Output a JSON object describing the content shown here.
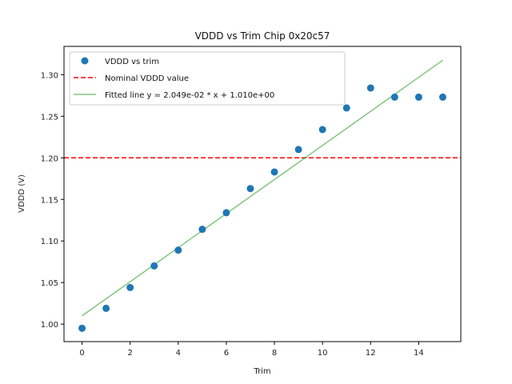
{
  "chart_data": {
    "type": "scatter",
    "title": "VDDD vs Trim Chip 0x20c57",
    "xlabel": "Trim",
    "ylabel": "VDDD (V)",
    "xlim": [
      -0.75,
      15.75
    ],
    "ylim": [
      0.979,
      1.334
    ],
    "xticks": [
      0,
      2,
      4,
      6,
      8,
      10,
      12,
      14
    ],
    "xtick_labels": [
      "0",
      "2",
      "4",
      "6",
      "8",
      "10",
      "12",
      "14"
    ],
    "yticks": [
      1.0,
      1.05,
      1.1,
      1.15,
      1.2,
      1.25,
      1.3
    ],
    "ytick_labels": [
      "1.00",
      "1.05",
      "1.10",
      "1.15",
      "1.20",
      "1.25",
      "1.30"
    ],
    "grid": false,
    "legend_position": "top-left",
    "series": [
      {
        "name": "VDDD vs trim",
        "kind": "scatter",
        "color": "#1f77b4",
        "x": [
          0,
          1,
          2,
          3,
          4,
          5,
          6,
          7,
          8,
          9,
          10,
          11,
          12,
          13,
          14,
          15
        ],
        "y": [
          0.995,
          1.019,
          1.044,
          1.07,
          1.089,
          1.114,
          1.134,
          1.163,
          1.183,
          1.21,
          1.234,
          1.26,
          1.284,
          1.273,
          1.273,
          1.273
        ]
      },
      {
        "name": "Nominal VDDD value",
        "kind": "hline",
        "color": "#ff0000",
        "y": 1.2
      },
      {
        "name": "Fitted line y = 2.049e-02 * x + 1.010e+00",
        "kind": "line",
        "color": "#2ca02c",
        "slope": 0.02049,
        "intercept": 1.01,
        "x_range": [
          0,
          15
        ]
      }
    ]
  }
}
